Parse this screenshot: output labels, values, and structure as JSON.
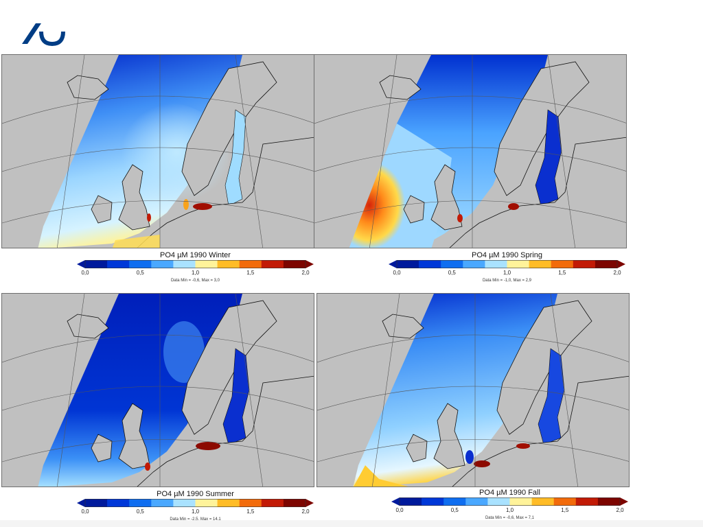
{
  "colorbar": {
    "colors": [
      "#001a9c",
      "#0038d8",
      "#0f6ef0",
      "#4aa8ff",
      "#a9e2ff",
      "#fff39a",
      "#ffbc26",
      "#f26b0b",
      "#c21a06",
      "#7d0500"
    ],
    "ticks": [
      "0,0",
      "0,5",
      "1,0",
      "1,5",
      "2,0"
    ]
  },
  "maps": [
    {
      "season": "Winter",
      "title": "PO4 µM 1990 Winter",
      "stats": "Data Min = -0,6, Max = 3,0"
    },
    {
      "season": "Spring",
      "title": "PO4 µM 1990 Spring",
      "stats": "Data Min = -1,0, Max = 2,9"
    },
    {
      "season": "Summer",
      "title": "PO4 µM 1990 Summer",
      "stats": "Data Min = -2,5, Max = 14,1"
    },
    {
      "season": "Fall",
      "title": "PO4 µM 1990 Fall",
      "stats": "Data Min = -0,6, Max = 7,1"
    }
  ],
  "colors": {
    "land": "#c0c0c0",
    "coast": "#111111",
    "grid": "#555555"
  }
}
